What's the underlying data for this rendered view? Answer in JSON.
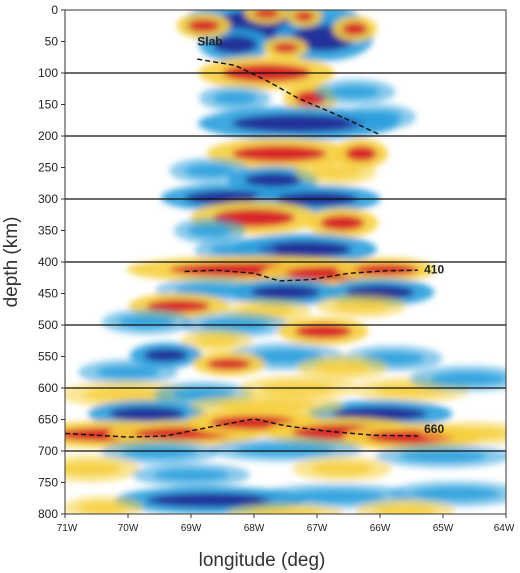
{
  "chart_data": {
    "type": "heatmap",
    "title": "",
    "xlabel": "longitude (deg)",
    "ylabel": "depth (km)",
    "xlim": [
      -71,
      -64
    ],
    "ylim": [
      800,
      0
    ],
    "x_ticks": [
      -71,
      -70,
      -69,
      -68,
      -67,
      -66,
      -65,
      -64
    ],
    "x_tick_labels": [
      "71W",
      "70W",
      "69W",
      "68W",
      "67W",
      "66W",
      "65W",
      "64W"
    ],
    "y_ticks": [
      0,
      50,
      100,
      150,
      200,
      250,
      300,
      350,
      400,
      450,
      500,
      550,
      600,
      650,
      700,
      750,
      800
    ],
    "y_tick_labels": [
      "0",
      "50",
      "100",
      "150",
      "200",
      "250",
      "300",
      "350",
      "400",
      "450",
      "500",
      "550",
      "600",
      "650",
      "700",
      "750",
      "800"
    ],
    "reference_depths": [
      100,
      200,
      300,
      400,
      500,
      600,
      700
    ],
    "colors": {
      "positive_strong": "#d8262a",
      "positive_weak": "#f6cf3d",
      "negative_weak": "#2a9fdc",
      "negative_strong": "#23309a",
      "neutral": "#ffffff",
      "line": "#111111"
    },
    "annotations": [
      {
        "text": "Slab",
        "x": -68.9,
        "y": 72
      },
      {
        "text": "410",
        "x": -65.3,
        "y": 412
      },
      {
        "text": "660",
        "x": -65.3,
        "y": 665
      }
    ],
    "traced_interfaces": [
      {
        "label": "Slab",
        "points": [
          [
            -68.9,
            78
          ],
          [
            -68.3,
            88
          ],
          [
            -67.8,
            112
          ],
          [
            -67.3,
            140
          ],
          [
            -66.6,
            170
          ],
          [
            -66.0,
            198
          ]
        ]
      },
      {
        "label": "410",
        "points": [
          [
            -69.1,
            415
          ],
          [
            -68.6,
            413
          ],
          [
            -68.0,
            418
          ],
          [
            -67.6,
            430
          ],
          [
            -67.1,
            428
          ],
          [
            -66.5,
            418
          ],
          [
            -65.9,
            414
          ],
          [
            -65.4,
            413
          ]
        ]
      },
      {
        "label": "660",
        "points": [
          [
            -71.0,
            672
          ],
          [
            -70.0,
            678
          ],
          [
            -69.4,
            676
          ],
          [
            -68.7,
            662
          ],
          [
            -68.0,
            649
          ],
          [
            -67.5,
            660
          ],
          [
            -66.9,
            668
          ],
          [
            -66.1,
            675
          ],
          [
            -65.4,
            676
          ]
        ]
      }
    ],
    "blobs": [
      {
        "lon": -67.7,
        "depth": 22,
        "rx": 0.95,
        "ry": 24,
        "amp": -1.0
      },
      {
        "lon": -66.9,
        "depth": 45,
        "rx": 0.5,
        "ry": 20,
        "amp": -0.9
      },
      {
        "lon": -68.3,
        "depth": 55,
        "rx": 0.35,
        "ry": 14,
        "amp": -0.9
      },
      {
        "lon": -67.8,
        "depth": 5,
        "rx": 0.2,
        "ry": 8,
        "amp": 1.0
      },
      {
        "lon": -67.2,
        "depth": 10,
        "rx": 0.15,
        "ry": 8,
        "amp": 1.0
      },
      {
        "lon": -68.8,
        "depth": 25,
        "rx": 0.25,
        "ry": 10,
        "amp": 0.9
      },
      {
        "lon": -66.4,
        "depth": 30,
        "rx": 0.2,
        "ry": 10,
        "amp": 0.9
      },
      {
        "lon": -67.5,
        "depth": 60,
        "rx": 0.2,
        "ry": 8,
        "amp": 0.9
      },
      {
        "lon": -67.8,
        "depth": 100,
        "rx": 0.7,
        "ry": 14,
        "amp": 1.0
      },
      {
        "lon": -67.1,
        "depth": 140,
        "rx": 0.25,
        "ry": 12,
        "amp": 1.0
      },
      {
        "lon": -68.3,
        "depth": 140,
        "rx": 0.35,
        "ry": 10,
        "amp": -0.8
      },
      {
        "lon": -66.4,
        "depth": 130,
        "rx": 0.4,
        "ry": 10,
        "amp": -0.7
      },
      {
        "lon": -67.3,
        "depth": 180,
        "rx": 1.05,
        "ry": 14,
        "amp": -1.0
      },
      {
        "lon": -66.0,
        "depth": 170,
        "rx": 0.35,
        "ry": 10,
        "amp": -0.6
      },
      {
        "lon": -67.6,
        "depth": 228,
        "rx": 0.75,
        "ry": 13,
        "amp": 1.0
      },
      {
        "lon": -66.3,
        "depth": 228,
        "rx": 0.25,
        "ry": 12,
        "amp": 1.0
      },
      {
        "lon": -68.7,
        "depth": 255,
        "rx": 0.4,
        "ry": 10,
        "amp": -0.6
      },
      {
        "lon": -67.7,
        "depth": 270,
        "rx": 0.45,
        "ry": 11,
        "amp": -0.9
      },
      {
        "lon": -66.7,
        "depth": 258,
        "rx": 0.4,
        "ry": 10,
        "amp": 0.7
      },
      {
        "lon": -68.4,
        "depth": 298,
        "rx": 0.7,
        "ry": 11,
        "amp": -1.0
      },
      {
        "lon": -67.0,
        "depth": 300,
        "rx": 0.65,
        "ry": 11,
        "amp": -1.0
      },
      {
        "lon": -68.0,
        "depth": 330,
        "rx": 0.65,
        "ry": 14,
        "amp": 1.0
      },
      {
        "lon": -66.6,
        "depth": 338,
        "rx": 0.35,
        "ry": 12,
        "amp": 1.0
      },
      {
        "lon": -68.7,
        "depth": 350,
        "rx": 0.35,
        "ry": 10,
        "amp": -0.6
      },
      {
        "lon": -67.2,
        "depth": 380,
        "rx": 0.75,
        "ry": 13,
        "amp": -1.0
      },
      {
        "lon": -68.3,
        "depth": 382,
        "rx": 0.4,
        "ry": 10,
        "amp": -0.7
      },
      {
        "lon": -68.0,
        "depth": 412,
        "rx": 1.35,
        "ry": 11,
        "amp": 1.0
      },
      {
        "lon": -66.8,
        "depth": 418,
        "rx": 0.7,
        "ry": 11,
        "amp": 1.0
      },
      {
        "lon": -65.9,
        "depth": 412,
        "rx": 0.5,
        "ry": 9,
        "amp": 1.0
      },
      {
        "lon": -68.7,
        "depth": 445,
        "rx": 0.55,
        "ry": 10,
        "amp": -0.8
      },
      {
        "lon": -67.5,
        "depth": 448,
        "rx": 0.55,
        "ry": 11,
        "amp": -0.9
      },
      {
        "lon": -66.0,
        "depth": 448,
        "rx": 0.55,
        "ry": 11,
        "amp": -1.0
      },
      {
        "lon": -69.2,
        "depth": 470,
        "rx": 0.5,
        "ry": 10,
        "amp": 1.0
      },
      {
        "lon": -67.8,
        "depth": 478,
        "rx": 0.45,
        "ry": 9,
        "amp": 0.6
      },
      {
        "lon": -66.3,
        "depth": 470,
        "rx": 0.45,
        "ry": 9,
        "amp": 0.7
      },
      {
        "lon": -69.7,
        "depth": 495,
        "rx": 0.45,
        "ry": 10,
        "amp": -0.7
      },
      {
        "lon": -68.3,
        "depth": 500,
        "rx": 0.55,
        "ry": 10,
        "amp": -0.7
      },
      {
        "lon": -66.9,
        "depth": 510,
        "rx": 0.45,
        "ry": 11,
        "amp": 1.0
      },
      {
        "lon": -68.6,
        "depth": 525,
        "rx": 0.35,
        "ry": 9,
        "amp": 0.5
      },
      {
        "lon": -69.4,
        "depth": 548,
        "rx": 0.35,
        "ry": 10,
        "amp": -1.0
      },
      {
        "lon": -67.5,
        "depth": 550,
        "rx": 0.6,
        "ry": 11,
        "amp": -0.8
      },
      {
        "lon": -65.8,
        "depth": 553,
        "rx": 0.5,
        "ry": 10,
        "amp": -0.6
      },
      {
        "lon": -68.4,
        "depth": 562,
        "rx": 0.35,
        "ry": 9,
        "amp": 1.0
      },
      {
        "lon": -66.6,
        "depth": 568,
        "rx": 0.45,
        "ry": 10,
        "amp": 0.6
      },
      {
        "lon": -70.0,
        "depth": 575,
        "rx": 0.5,
        "ry": 10,
        "amp": -0.4
      },
      {
        "lon": -70.0,
        "depth": 610,
        "rx": 0.7,
        "ry": 11,
        "amp": 0.7
      },
      {
        "lon": -68.8,
        "depth": 610,
        "rx": 0.5,
        "ry": 10,
        "amp": -0.5
      },
      {
        "lon": -67.3,
        "depth": 600,
        "rx": 0.6,
        "ry": 10,
        "amp": 0.6
      },
      {
        "lon": -65.5,
        "depth": 603,
        "rx": 0.6,
        "ry": 10,
        "amp": 0.5
      },
      {
        "lon": -64.6,
        "depth": 585,
        "rx": 0.6,
        "ry": 10,
        "amp": -0.4
      },
      {
        "lon": -69.7,
        "depth": 641,
        "rx": 0.6,
        "ry": 11,
        "amp": -1.0
      },
      {
        "lon": -66.0,
        "depth": 641,
        "rx": 0.75,
        "ry": 11,
        "amp": -1.0
      },
      {
        "lon": -67.8,
        "depth": 628,
        "rx": 0.8,
        "ry": 9,
        "amp": 0.4
      },
      {
        "lon": -70.3,
        "depth": 674,
        "rx": 0.85,
        "ry": 11,
        "amp": 1.0
      },
      {
        "lon": -69.1,
        "depth": 672,
        "rx": 0.8,
        "ry": 10,
        "amp": 1.0
      },
      {
        "lon": -68.0,
        "depth": 655,
        "rx": 0.7,
        "ry": 11,
        "amp": 1.0
      },
      {
        "lon": -66.6,
        "depth": 670,
        "rx": 0.8,
        "ry": 12,
        "amp": 1.0
      },
      {
        "lon": -65.5,
        "depth": 678,
        "rx": 0.7,
        "ry": 11,
        "amp": 0.9
      },
      {
        "lon": -64.5,
        "depth": 672,
        "rx": 0.55,
        "ry": 9,
        "amp": 0.6
      },
      {
        "lon": -69.5,
        "depth": 702,
        "rx": 0.6,
        "ry": 9,
        "amp": -0.5
      },
      {
        "lon": -67.5,
        "depth": 698,
        "rx": 0.8,
        "ry": 9,
        "amp": -0.6
      },
      {
        "lon": -65.0,
        "depth": 708,
        "rx": 0.7,
        "ry": 9,
        "amp": -0.6
      },
      {
        "lon": -70.6,
        "depth": 728,
        "rx": 0.5,
        "ry": 11,
        "amp": 0.7
      },
      {
        "lon": -66.6,
        "depth": 728,
        "rx": 0.5,
        "ry": 10,
        "amp": 0.5
      },
      {
        "lon": -69.0,
        "depth": 738,
        "rx": 0.6,
        "ry": 9,
        "amp": -0.5
      },
      {
        "lon": -68.7,
        "depth": 778,
        "rx": 1.0,
        "ry": 11,
        "amp": -1.0
      },
      {
        "lon": -66.7,
        "depth": 772,
        "rx": 0.8,
        "ry": 10,
        "amp": -0.7
      },
      {
        "lon": -64.8,
        "depth": 768,
        "rx": 0.7,
        "ry": 10,
        "amp": -0.6
      },
      {
        "lon": -70.4,
        "depth": 790,
        "rx": 0.4,
        "ry": 9,
        "amp": 0.6
      },
      {
        "lon": -67.5,
        "depth": 800,
        "rx": 0.6,
        "ry": 8,
        "amp": 0.5
      },
      {
        "lon": -65.6,
        "depth": 795,
        "rx": 0.5,
        "ry": 9,
        "amp": 0.5
      }
    ]
  }
}
